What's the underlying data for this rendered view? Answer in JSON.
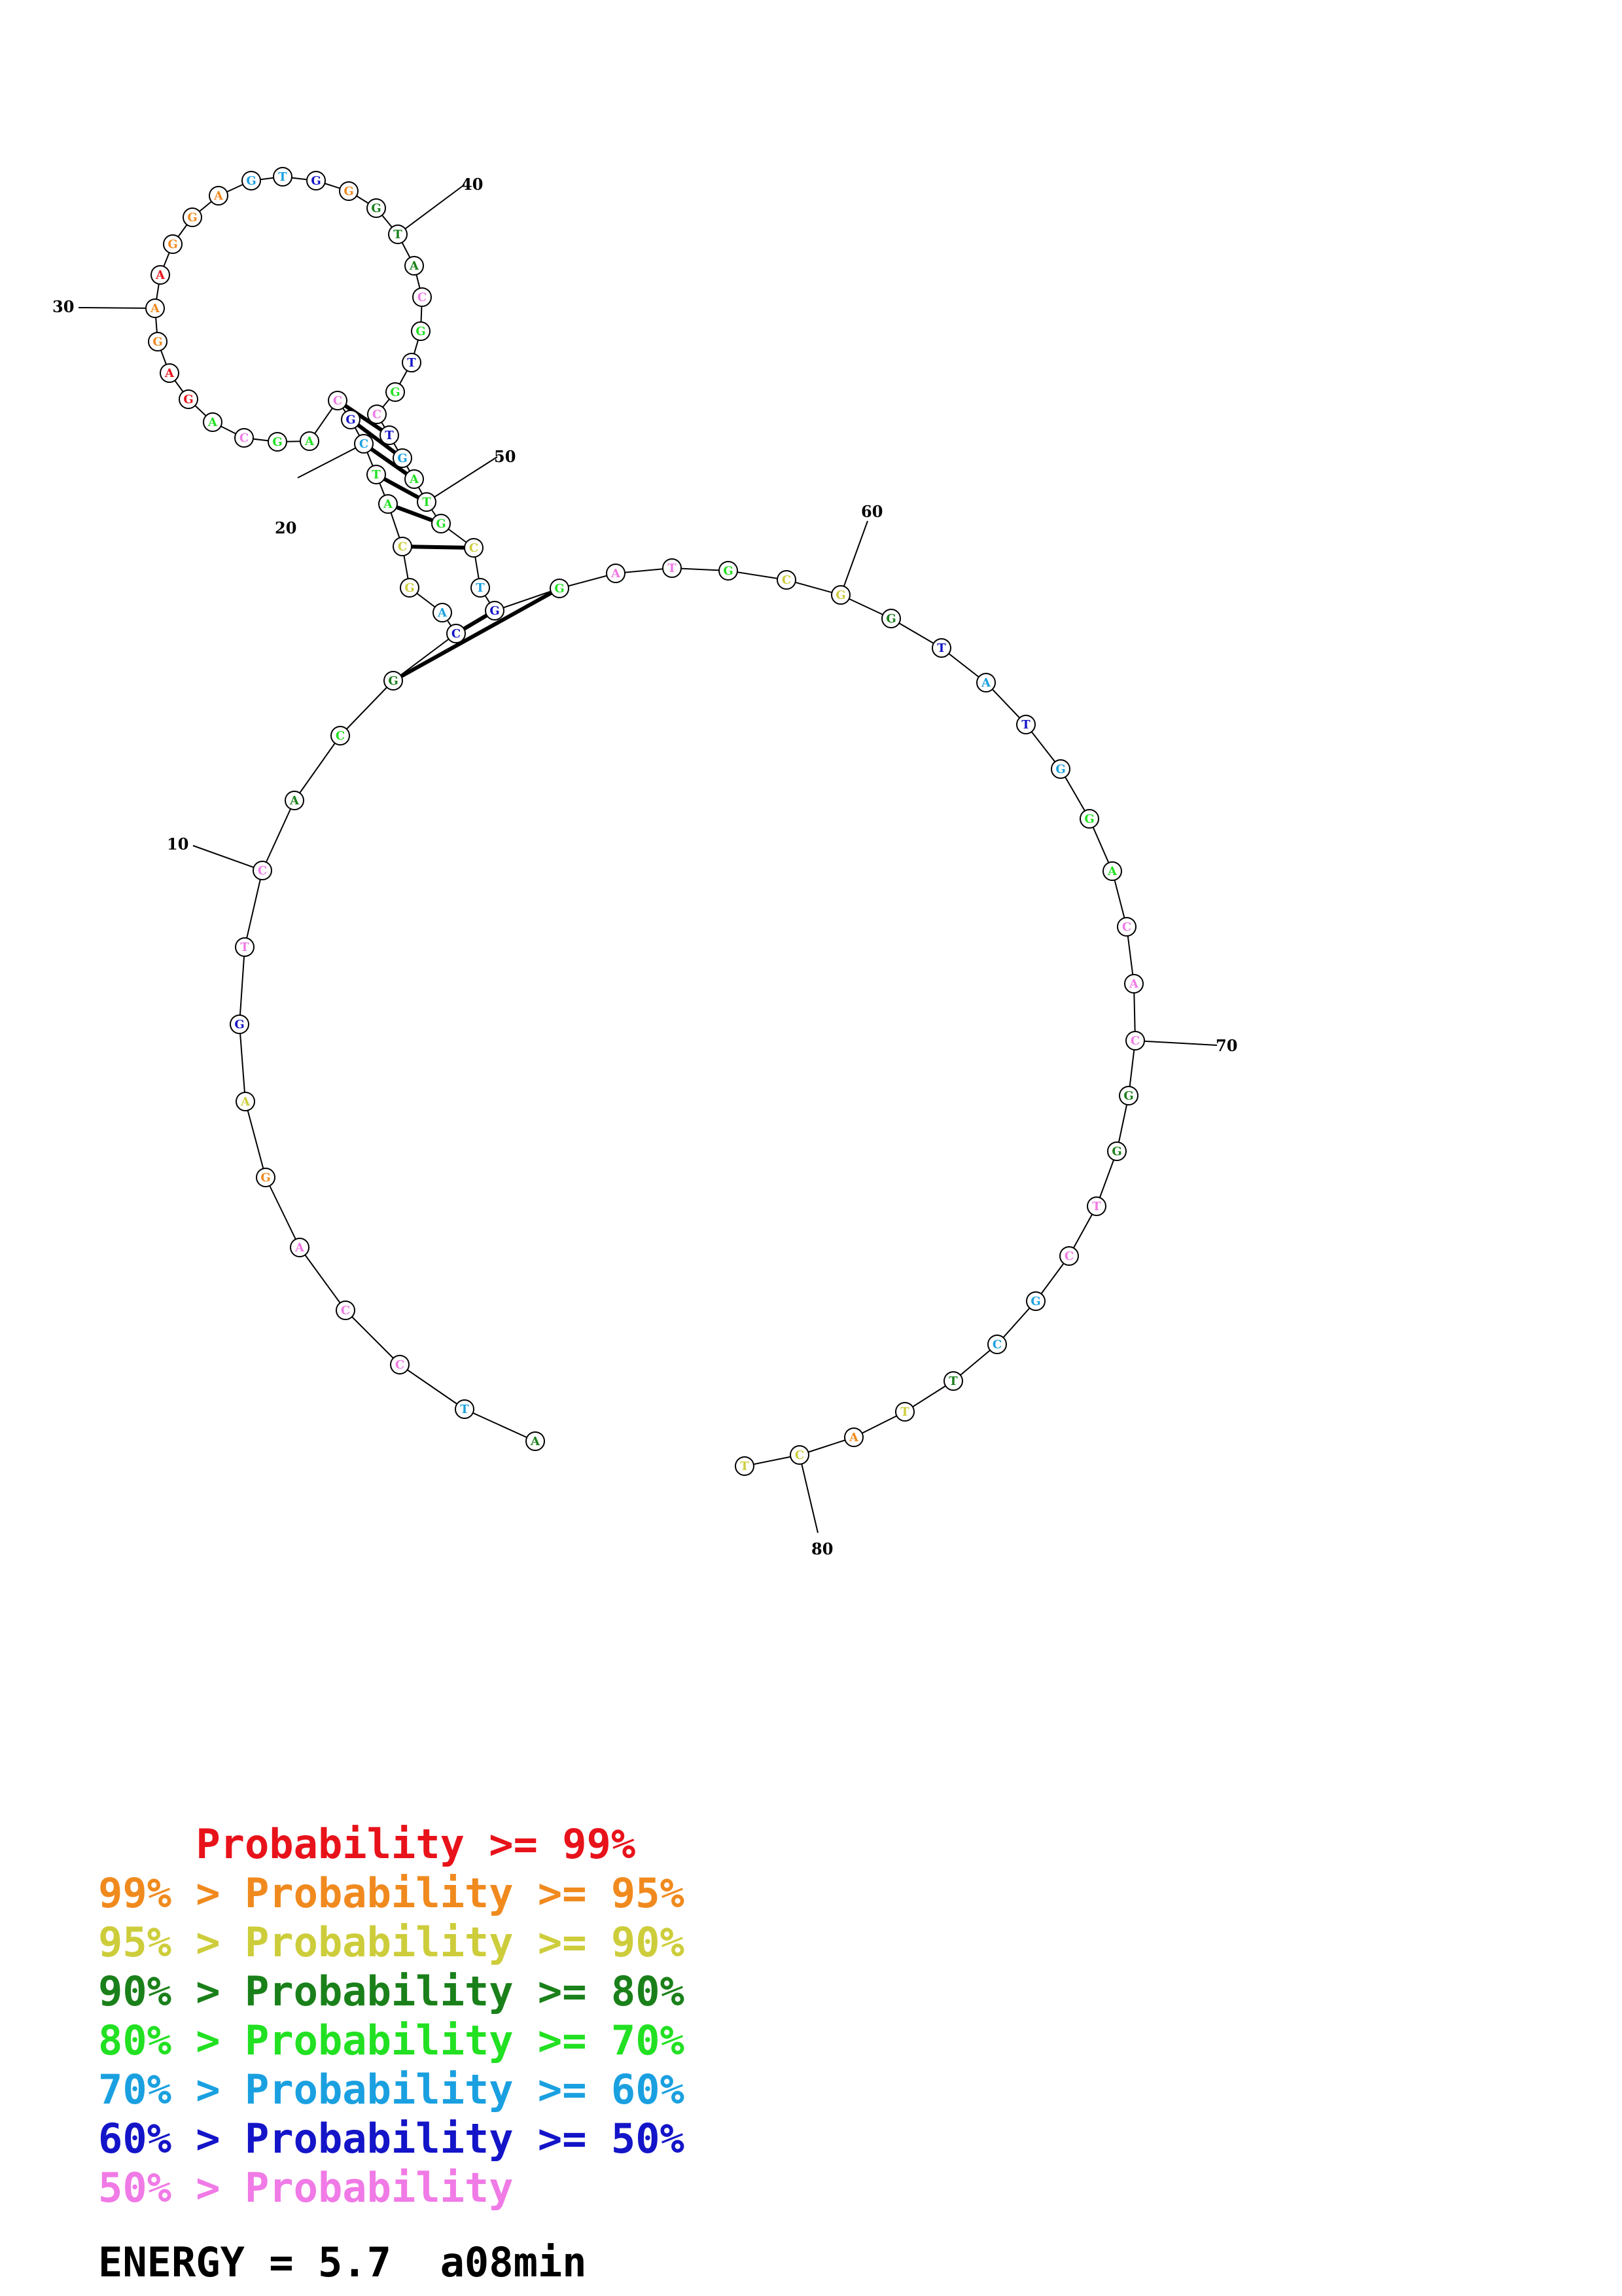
{
  "colors": {
    "p99": "#e8121a",
    "p95": "#f08a1e",
    "p90": "#cdcd3c",
    "p80": "#1a801a",
    "p70": "#22e022",
    "p60": "#1aa0e0",
    "p50": "#1414c8",
    "plow": "#f07ae6"
  },
  "nucleotides": [
    {
      "n": 1,
      "b": "A",
      "c": "p80"
    },
    {
      "n": 2,
      "b": "T",
      "c": "p60"
    },
    {
      "n": 3,
      "b": "C",
      "c": "plow"
    },
    {
      "n": 4,
      "b": "C",
      "c": "plow"
    },
    {
      "n": 5,
      "b": "A",
      "c": "plow"
    },
    {
      "n": 6,
      "b": "G",
      "c": "p95"
    },
    {
      "n": 7,
      "b": "A",
      "c": "p90"
    },
    {
      "n": 8,
      "b": "G",
      "c": "p50"
    },
    {
      "n": 9,
      "b": "T",
      "c": "plow"
    },
    {
      "n": 10,
      "b": "C",
      "c": "plow"
    },
    {
      "n": 11,
      "b": "A",
      "c": "p80"
    },
    {
      "n": 12,
      "b": "C",
      "c": "p70"
    },
    {
      "n": 13,
      "b": "G",
      "c": "p80"
    },
    {
      "n": 14,
      "b": "C",
      "c": "p50"
    },
    {
      "n": 15,
      "b": "A",
      "c": "p60"
    },
    {
      "n": 16,
      "b": "G",
      "c": "p90"
    },
    {
      "n": 17,
      "b": "C",
      "c": "p90"
    },
    {
      "n": 18,
      "b": "A",
      "c": "p70"
    },
    {
      "n": 19,
      "b": "T",
      "c": "p70"
    },
    {
      "n": 20,
      "b": "C",
      "c": "p60"
    },
    {
      "n": 21,
      "b": "G",
      "c": "p50"
    },
    {
      "n": 22,
      "b": "C",
      "c": "plow"
    },
    {
      "n": 23,
      "b": "A",
      "c": "p70"
    },
    {
      "n": 24,
      "b": "G",
      "c": "p70"
    },
    {
      "n": 25,
      "b": "C",
      "c": "plow"
    },
    {
      "n": 26,
      "b": "A",
      "c": "p70"
    },
    {
      "n": 27,
      "b": "G",
      "c": "p99"
    },
    {
      "n": 28,
      "b": "A",
      "c": "p99"
    },
    {
      "n": 29,
      "b": "G",
      "c": "p95"
    },
    {
      "n": 30,
      "b": "A",
      "c": "p95"
    },
    {
      "n": 31,
      "b": "A",
      "c": "p99"
    },
    {
      "n": 32,
      "b": "G",
      "c": "p95"
    },
    {
      "n": 33,
      "b": "G",
      "c": "p95"
    },
    {
      "n": 34,
      "b": "A",
      "c": "p95"
    },
    {
      "n": 35,
      "b": "G",
      "c": "p60"
    },
    {
      "n": 36,
      "b": "T",
      "c": "p60"
    },
    {
      "n": 37,
      "b": "G",
      "c": "p50"
    },
    {
      "n": 38,
      "b": "G",
      "c": "p95"
    },
    {
      "n": 39,
      "b": "G",
      "c": "p80"
    },
    {
      "n": 40,
      "b": "T",
      "c": "p80"
    },
    {
      "n": 41,
      "b": "A",
      "c": "p80"
    },
    {
      "n": 42,
      "b": "C",
      "c": "plow"
    },
    {
      "n": 43,
      "b": "G",
      "c": "p70"
    },
    {
      "n": 44,
      "b": "T",
      "c": "p50"
    },
    {
      "n": 45,
      "b": "G",
      "c": "p70"
    },
    {
      "n": 46,
      "b": "C",
      "c": "plow"
    },
    {
      "n": 47,
      "b": "T",
      "c": "p50"
    },
    {
      "n": 48,
      "b": "G",
      "c": "p60"
    },
    {
      "n": 49,
      "b": "A",
      "c": "p70"
    },
    {
      "n": 50,
      "b": "T",
      "c": "p70"
    },
    {
      "n": 51,
      "b": "G",
      "c": "p70"
    },
    {
      "n": 52,
      "b": "C",
      "c": "p90"
    },
    {
      "n": 53,
      "b": "T",
      "c": "p60"
    },
    {
      "n": 54,
      "b": "G",
      "c": "p50"
    },
    {
      "n": 55,
      "b": "G",
      "c": "p70"
    },
    {
      "n": 56,
      "b": "A",
      "c": "plow"
    },
    {
      "n": 57,
      "b": "T",
      "c": "plow"
    },
    {
      "n": 58,
      "b": "G",
      "c": "p70"
    },
    {
      "n": 59,
      "b": "C",
      "c": "p90"
    },
    {
      "n": 60,
      "b": "G",
      "c": "p90"
    },
    {
      "n": 61,
      "b": "G",
      "c": "p80"
    },
    {
      "n": 62,
      "b": "T",
      "c": "p50"
    },
    {
      "n": 63,
      "b": "A",
      "c": "p60"
    },
    {
      "n": 64,
      "b": "T",
      "c": "p50"
    },
    {
      "n": 65,
      "b": "G",
      "c": "p60"
    },
    {
      "n": 66,
      "b": "G",
      "c": "p70"
    },
    {
      "n": 67,
      "b": "A",
      "c": "p70"
    },
    {
      "n": 68,
      "b": "C",
      "c": "plow"
    },
    {
      "n": 69,
      "b": "A",
      "c": "plow"
    },
    {
      "n": 70,
      "b": "C",
      "c": "plow"
    },
    {
      "n": 71,
      "b": "G",
      "c": "p80"
    },
    {
      "n": 72,
      "b": "G",
      "c": "p80"
    },
    {
      "n": 73,
      "b": "T",
      "c": "plow"
    },
    {
      "n": 74,
      "b": "C",
      "c": "plow"
    },
    {
      "n": 75,
      "b": "G",
      "c": "p60"
    },
    {
      "n": 76,
      "b": "C",
      "c": "p60"
    },
    {
      "n": 77,
      "b": "T",
      "c": "p80"
    },
    {
      "n": 78,
      "b": "T",
      "c": "p90"
    },
    {
      "n": 79,
      "b": "A",
      "c": "p95"
    },
    {
      "n": 80,
      "b": "C",
      "c": "p90"
    },
    {
      "n": 81,
      "b": "T",
      "c": "p90"
    }
  ],
  "pairs": [
    [
      13,
      55
    ],
    [
      14,
      54
    ],
    [
      17,
      52
    ],
    [
      18,
      51
    ],
    [
      19,
      50
    ],
    [
      20,
      49
    ],
    [
      21,
      48
    ],
    [
      22,
      47
    ]
  ],
  "position_labels": [
    "10",
    "20",
    "30",
    "40",
    "50",
    "60",
    "70",
    "80"
  ],
  "legend": [
    {
      "prefix": "    ",
      "text": "Probability >= 99%",
      "c": "p99"
    },
    {
      "prefix": "99% > ",
      "text": "Probability >= 95%",
      "c": "p95"
    },
    {
      "prefix": "95% > ",
      "text": "Probability >= 90%",
      "c": "p90"
    },
    {
      "prefix": "90% > ",
      "text": "Probability >= 80%",
      "c": "p80"
    },
    {
      "prefix": "80% > ",
      "text": "Probability >= 70%",
      "c": "p70"
    },
    {
      "prefix": "70% > ",
      "text": "Probability >= 60%",
      "c": "p60"
    },
    {
      "prefix": "60% > ",
      "text": "Probability >= 50%",
      "c": "p50"
    },
    {
      "prefix": "50% > ",
      "text": "Probability",
      "c": "plow"
    }
  ],
  "energy": {
    "label": "ENERGY = 5.7",
    "structure": "a08min"
  }
}
